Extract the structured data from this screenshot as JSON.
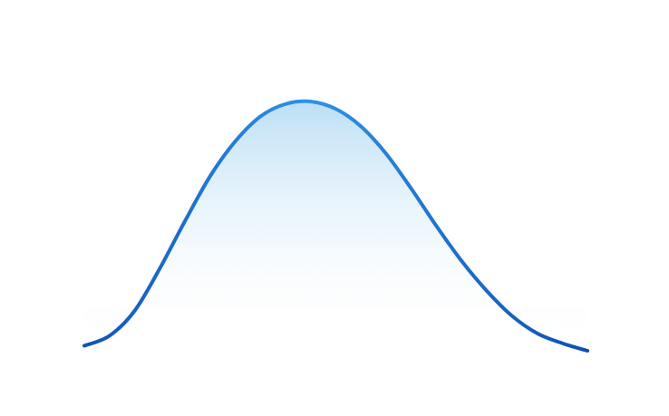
{
  "chart_data": {
    "type": "area",
    "x": [
      0,
      0.05,
      0.1,
      0.15,
      0.2,
      0.25,
      0.3,
      0.35,
      0.4,
      0.45,
      0.5,
      0.55,
      0.6,
      0.65,
      0.7,
      0.75,
      0.8,
      0.85,
      0.9,
      0.95,
      1.0
    ],
    "series": [
      {
        "values": [
          0.02,
          0.06,
          0.16,
          0.33,
          0.52,
          0.7,
          0.84,
          0.94,
          0.99,
          1.0,
          0.97,
          0.9,
          0.79,
          0.65,
          0.5,
          0.36,
          0.24,
          0.14,
          0.07,
          0.03,
          0.0
        ],
        "colors": {
          "line_start": "#1153B8",
          "line_mid": "#2E93E6",
          "line_end": "#0E4FB5",
          "fill_top": "#A6D4F2",
          "fill_bottom": "#FFFFFF"
        }
      }
    ],
    "title": "",
    "xlabel": "",
    "ylabel": "",
    "xlim": [
      0,
      1
    ],
    "ylim": [
      0,
      1
    ],
    "grid": false,
    "axes_visible": false
  }
}
